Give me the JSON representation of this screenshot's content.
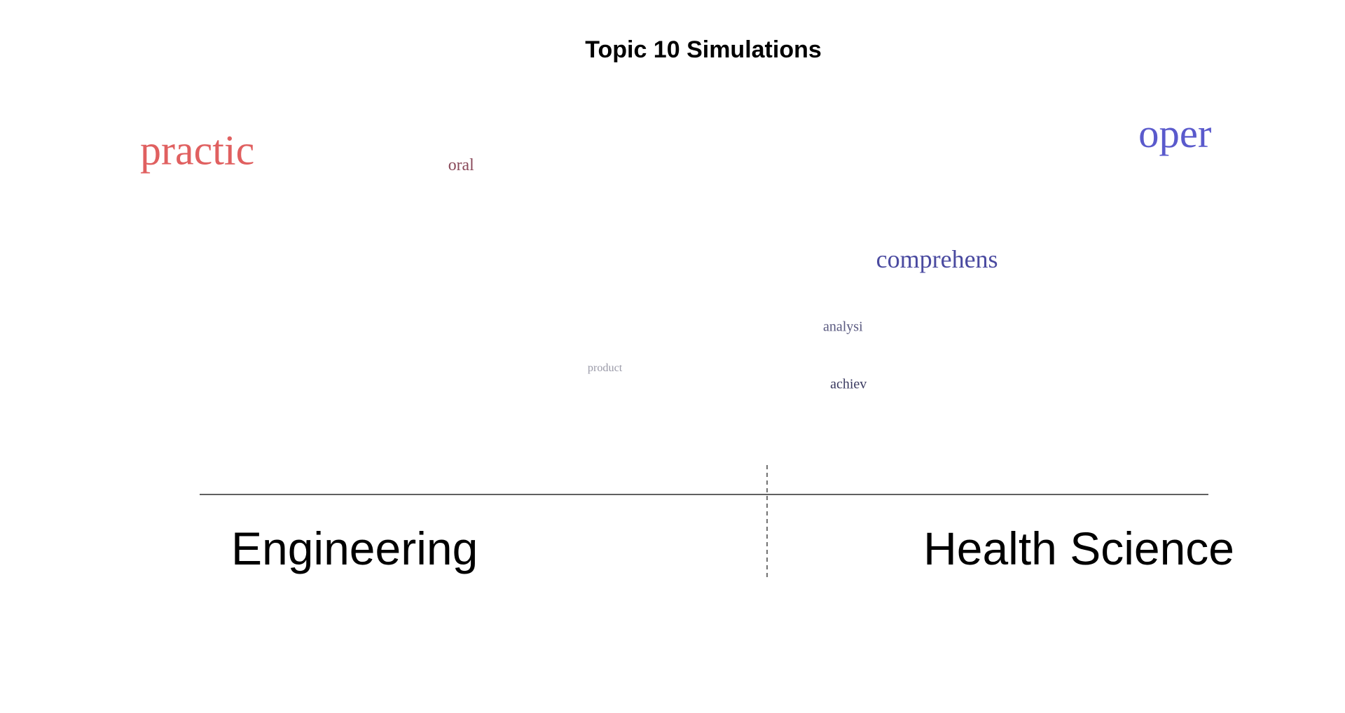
{
  "chart_data": {
    "type": "scatter",
    "title": "Topic 10 Simulations",
    "xlabel": "",
    "ylabel": "",
    "xlim": [
      -1,
      1
    ],
    "ylim": [
      0,
      1
    ],
    "groups": {
      "left": {
        "label": "Engineering",
        "color": "#cc3d3d"
      },
      "right": {
        "label": "Health Science",
        "color": "#3d3dcc"
      }
    },
    "words": [
      {
        "text": "practic",
        "x": -1.0,
        "y": 0.94,
        "weight": 1.0,
        "color": "#e06060"
      },
      {
        "text": "oral",
        "x": -0.42,
        "y": 0.92,
        "weight": 0.1,
        "color": "#8a4a5a"
      },
      {
        "text": "oper",
        "x": 0.87,
        "y": 1.0,
        "weight": 0.95,
        "color": "#5a5acc"
      },
      {
        "text": "comprehens",
        "x": 0.44,
        "y": 0.58,
        "weight": 0.3,
        "color": "#4a4aa0"
      },
      {
        "text": "analysi",
        "x": 0.27,
        "y": 0.36,
        "weight": 0.06,
        "color": "#5a5a80"
      },
      {
        "text": "product",
        "x": -0.16,
        "y": 0.22,
        "weight": 0.03,
        "color": "#9a9aa8"
      },
      {
        "text": "achiev",
        "x": 0.28,
        "y": 0.16,
        "weight": 0.06,
        "color": "#3a3a60"
      }
    ]
  }
}
